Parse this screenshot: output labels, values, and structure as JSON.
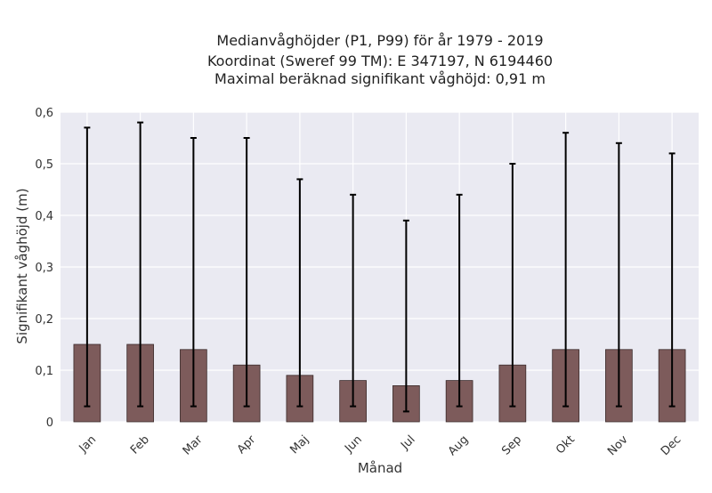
{
  "chart_data": {
    "type": "bar",
    "title_lines": [
      "Medianvåghöjder (P1, P99) för år 1979 - 2019",
      "Koordinat (Sweref 99 TM): E 347197, N 6194460",
      "Maximal beräknad signifikant våghöjd: 0,91 m"
    ],
    "xlabel": "Månad",
    "ylabel": "Signifikant våghöjd (m)",
    "categories": [
      "Jan",
      "Feb",
      "Mar",
      "Apr",
      "Maj",
      "Jun",
      "Jul",
      "Aug",
      "Sep",
      "Okt",
      "Nov",
      "Dec"
    ],
    "values": [
      0.15,
      0.15,
      0.14,
      0.11,
      0.09,
      0.08,
      0.07,
      0.08,
      0.11,
      0.14,
      0.14,
      0.14
    ],
    "lower": [
      0.03,
      0.03,
      0.03,
      0.03,
      0.03,
      0.03,
      0.02,
      0.03,
      0.03,
      0.03,
      0.03,
      0.03
    ],
    "upper": [
      0.57,
      0.58,
      0.55,
      0.55,
      0.47,
      0.44,
      0.39,
      0.44,
      0.5,
      0.56,
      0.54,
      0.52
    ],
    "ylim": [
      0,
      0.6
    ],
    "yticks": [
      0,
      0.1,
      0.2,
      0.3,
      0.4,
      0.5,
      0.6
    ],
    "ytick_labels": [
      "0",
      "0,1",
      "0,2",
      "0,3",
      "0,4",
      "0,5",
      "0,6"
    ],
    "grid": true,
    "colors": {
      "bar": "#7d5b5b",
      "bar_edge": "#3a2a2a",
      "error": "#000000",
      "background": "#eaeaf2",
      "grid": "#ffffff"
    }
  }
}
